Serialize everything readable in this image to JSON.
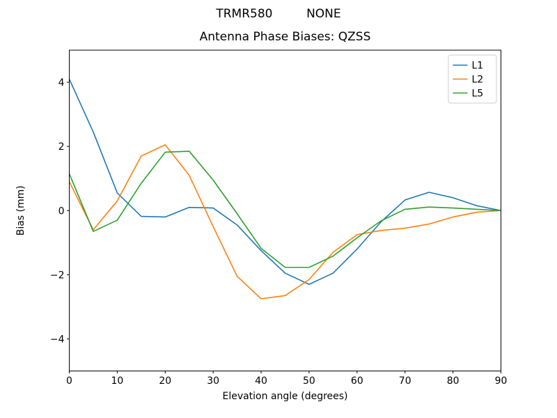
{
  "figure": {
    "background": "#ffffff",
    "frame_color": "#000000",
    "legend_border_color": "#cccccc"
  },
  "chart_data": {
    "type": "line",
    "suptitle": "TRMR580         NONE",
    "title": "Antenna Phase Biases: QZSS",
    "xlabel": "Elevation angle (degrees)",
    "ylabel": "Bias (mm)",
    "xlim": [
      0,
      90
    ],
    "ylim": [
      -5,
      5
    ],
    "xticks": [
      0,
      10,
      20,
      30,
      40,
      50,
      60,
      70,
      80,
      90
    ],
    "yticks": [
      -4,
      -2,
      0,
      2,
      4
    ],
    "grid": false,
    "legend_position": "upper right",
    "x": [
      0,
      5,
      10,
      15,
      20,
      25,
      30,
      35,
      40,
      45,
      50,
      55,
      60,
      65,
      70,
      75,
      80,
      85,
      90
    ],
    "series": [
      {
        "name": "L1",
        "color": "#1f77b4",
        "values": [
          4.1,
          2.45,
          0.55,
          -0.18,
          -0.2,
          0.1,
          0.08,
          -0.45,
          -1.25,
          -1.95,
          -2.3,
          -1.95,
          -1.2,
          -0.35,
          0.33,
          0.57,
          0.4,
          0.15,
          0.0
        ]
      },
      {
        "name": "L2",
        "color": "#ff7f0e",
        "values": [
          0.9,
          -0.6,
          0.3,
          1.7,
          2.05,
          1.1,
          -0.5,
          -2.05,
          -2.75,
          -2.65,
          -2.15,
          -1.3,
          -0.75,
          -0.62,
          -0.55,
          -0.42,
          -0.2,
          -0.05,
          0.0
        ]
      },
      {
        "name": "L5",
        "color": "#2ca02c",
        "values": [
          1.15,
          -0.65,
          -0.3,
          0.85,
          1.82,
          1.85,
          0.95,
          -0.1,
          -1.18,
          -1.77,
          -1.77,
          -1.42,
          -0.85,
          -0.32,
          0.04,
          0.11,
          0.08,
          0.04,
          0.0
        ]
      }
    ]
  }
}
